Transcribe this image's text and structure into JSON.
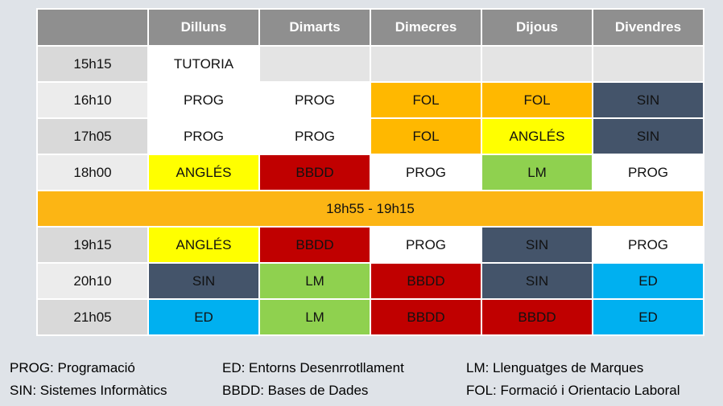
{
  "colors": {
    "PROG": "#ffffff",
    "FOL": "#ffb800",
    "SIN": "#44546a",
    "ANGLES": "#ffff00",
    "BBDD": "#c00000",
    "LM": "#8fd14f",
    "ED": "#00b0f0",
    "header": "#8f8f8f",
    "break": "#fcb514"
  },
  "timetable": {
    "days": [
      "Dilluns",
      "Dimarts",
      "Dimecres",
      "Dijous",
      "Divendres"
    ],
    "break_label": "18h55 - 19h15",
    "rows": [
      {
        "time": "15h15",
        "cells": [
          "TUTORIA",
          "",
          "",
          "",
          ""
        ]
      },
      {
        "time": "16h10",
        "cells": [
          "PROG",
          "PROG",
          "FOL",
          "FOL",
          "SIN"
        ]
      },
      {
        "time": "17h05",
        "cells": [
          "PROG",
          "PROG",
          "FOL",
          "ANGLÉS",
          "SIN"
        ]
      },
      {
        "time": "18h00",
        "cells": [
          "ANGLÉS",
          "BBDD",
          "PROG",
          "LM",
          "PROG"
        ]
      },
      {
        "time": "19h15",
        "cells": [
          "ANGLÉS",
          "BBDD",
          "PROG",
          "SIN",
          "PROG"
        ]
      },
      {
        "time": "20h10",
        "cells": [
          "SIN",
          "LM",
          "BBDD",
          "SIN",
          "ED"
        ]
      },
      {
        "time": "21h05",
        "cells": [
          "ED",
          "LM",
          "BBDD",
          "BBDD",
          "ED"
        ]
      }
    ]
  },
  "legend": {
    "prog": "PROG: Programació",
    "sin": "SIN: Sistemes Informàtics",
    "ed": "ED: Entorns Desenrrotllament",
    "bbdd": "BBDD: Bases de Dades",
    "lm": "LM: Llenguatges de Marques",
    "fol": "FOL: Formació i Orientacio Laboral"
  }
}
